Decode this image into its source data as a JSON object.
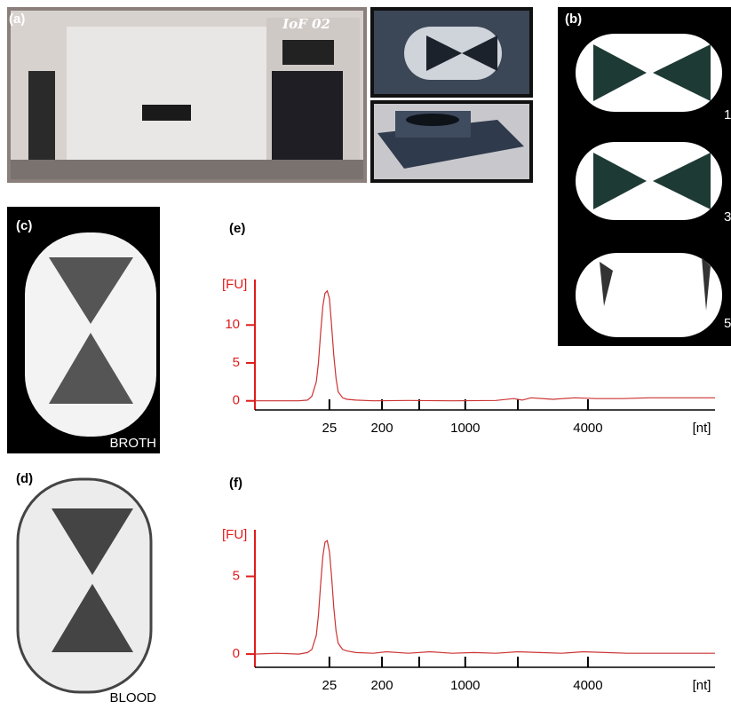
{
  "panels": {
    "a": {
      "label": "(a)",
      "sign": "IoF 02"
    },
    "b": {
      "label": "(b)",
      "marks": [
        "1",
        "3",
        "5"
      ]
    },
    "c": {
      "label": "(c)",
      "caption": "BROTH"
    },
    "d": {
      "label": "(d)",
      "caption": "BLOOD"
    },
    "e": {
      "label": "(e)"
    },
    "f": {
      "label": "(f)"
    }
  },
  "chart_data": [
    {
      "type": "line",
      "ylabel": "[FU]",
      "xlabel": "[nt]",
      "color": "#cc3333",
      "axis_color": "#e01b1b",
      "x": [
        0,
        5,
        10,
        12,
        13,
        14,
        14.5,
        15,
        15.5,
        16,
        16.5,
        17,
        17.5,
        18,
        18.5,
        19,
        20,
        21,
        23,
        27,
        35,
        45,
        55,
        59,
        61,
        63,
        68,
        73,
        78,
        84,
        90,
        96,
        105
      ],
      "values": [
        0,
        0,
        0,
        0.1,
        0.6,
        2.5,
        5,
        9,
        12.5,
        14.2,
        14.5,
        13.5,
        10,
        6,
        3,
        1.2,
        0.4,
        0.2,
        0.1,
        0,
        0.05,
        0,
        0.05,
        0.3,
        0.1,
        0.4,
        0.2,
        0.4,
        0.3,
        0.3,
        0.4,
        0.4,
        0.4
      ],
      "xlim": [
        0,
        105
      ],
      "ylim": [
        -1.2,
        16
      ],
      "xticks": [
        {
          "value": 17,
          "label": "25"
        },
        {
          "value": 29,
          "label": "200"
        },
        {
          "value": 37.5,
          "label": null
        },
        {
          "value": 48,
          "label": "1000"
        },
        {
          "value": 60,
          "label": null
        },
        {
          "value": 76,
          "label": "4000"
        }
      ],
      "yticks": [
        0,
        5,
        10
      ]
    },
    {
      "type": "line",
      "ylabel": "[FU]",
      "xlabel": "[nt]",
      "color": "#cc3333",
      "axis_color": "#e01b1b",
      "x": [
        0,
        5,
        10,
        12,
        13,
        14,
        14.5,
        15,
        15.5,
        16,
        16.5,
        17,
        17.5,
        18,
        18.5,
        19,
        20,
        21,
        23,
        27,
        30,
        35,
        40,
        45,
        50,
        55,
        60,
        65,
        70,
        75,
        80,
        85,
        90,
        96,
        105
      ],
      "values": [
        0,
        0.05,
        0,
        0.1,
        0.3,
        1.2,
        2.5,
        4.5,
        6.3,
        7.2,
        7.3,
        6.6,
        5,
        3,
        1.5,
        0.7,
        0.3,
        0.2,
        0.1,
        0.05,
        0.15,
        0.05,
        0.15,
        0.05,
        0.1,
        0.05,
        0.15,
        0.1,
        0.05,
        0.15,
        0.1,
        0.05,
        0.05,
        0.05,
        0.05
      ],
      "xlim": [
        0,
        105
      ],
      "ylim": [
        -0.85,
        8
      ],
      "xticks": [
        {
          "value": 17,
          "label": "25"
        },
        {
          "value": 29,
          "label": "200"
        },
        {
          "value": 37.5,
          "label": null
        },
        {
          "value": 48,
          "label": "1000"
        },
        {
          "value": 60,
          "label": null
        },
        {
          "value": 76,
          "label": "4000"
        }
      ],
      "yticks": [
        0,
        5
      ]
    }
  ]
}
